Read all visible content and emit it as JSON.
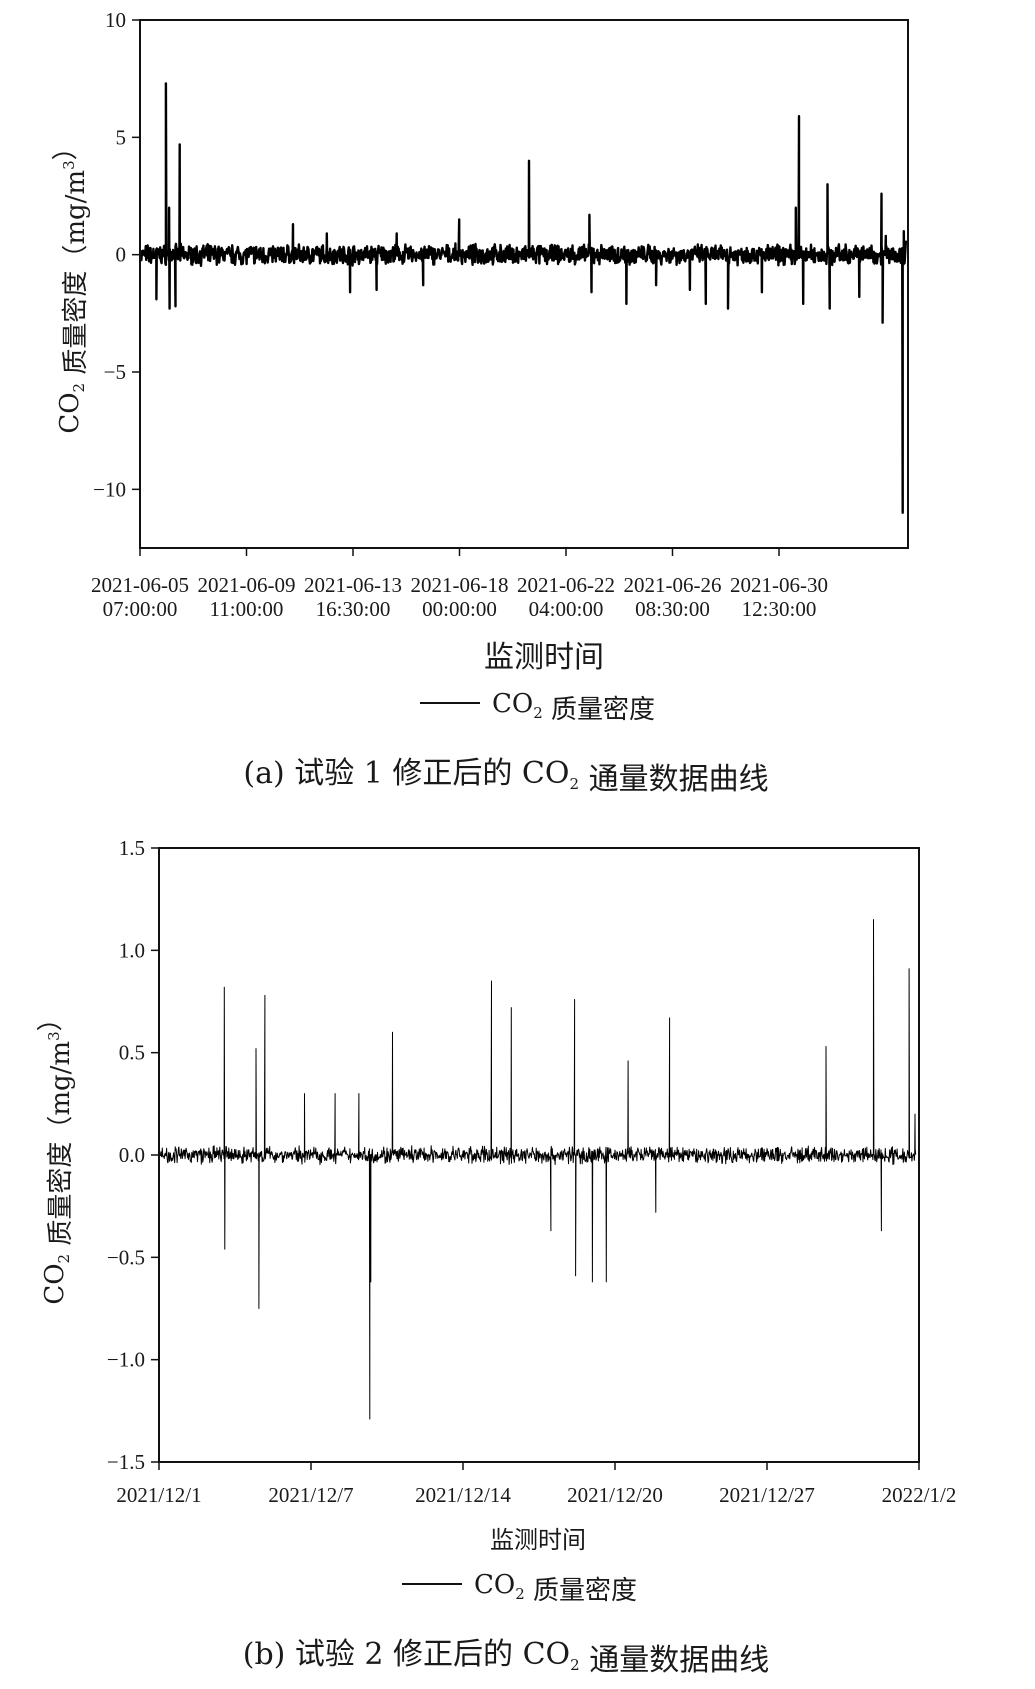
{
  "chart_data": [
    {
      "type": "line",
      "panel": "a",
      "caption": "(a) 试验 1 修正后的 CO2 通量数据曲线",
      "xlabel": "监测时间",
      "ylabel": "CO2 质量密度（mg/m3）",
      "ylim": [
        -12.5,
        10
      ],
      "y_ticks": [
        10,
        5,
        0,
        -5,
        -10
      ],
      "y_tick_labels": [
        "10",
        "5",
        "0",
        "−5",
        "−10"
      ],
      "x_tick_labels": [
        [
          "2021-06-05",
          "07:00:00"
        ],
        [
          "2021-06-09",
          "11:00:00"
        ],
        [
          "2021-06-13",
          "16:30:00"
        ],
        [
          "2021-06-18",
          "00:00:00"
        ],
        [
          "2021-06-22",
          "04:00:00"
        ],
        [
          "2021-06-26",
          "08:30:00"
        ],
        [
          "2021-06-30",
          "12:30:00"
        ]
      ],
      "xlim": [
        "2021-06-01 02:30",
        "2021-07-01 08:00"
      ],
      "grid": false,
      "legend": "bottom",
      "series": [
        {
          "name": "CO2 质量密度",
          "color": "#000000",
          "baseline_noise": 0.5,
          "spikes": [
            {
              "x": "2021-06-02 03:00",
              "y": 7.3
            },
            {
              "x": "2021-06-02 06:00",
              "y": 2.0
            },
            {
              "x": "2021-06-02 06:30",
              "y": -2.3
            },
            {
              "x": "2021-06-02 16:00",
              "y": 4.7
            },
            {
              "x": "2021-06-02 12:00",
              "y": -2.2
            },
            {
              "x": "2021-06-01 18:00",
              "y": -1.9
            },
            {
              "x": "2021-06-07 03:00",
              "y": 1.3
            },
            {
              "x": "2021-06-08 11:00",
              "y": 0.9
            },
            {
              "x": "2021-06-09 09:00",
              "y": -1.6
            },
            {
              "x": "2021-06-10 10:00",
              "y": -1.5
            },
            {
              "x": "2021-06-11 05:00",
              "y": 0.9
            },
            {
              "x": "2021-06-12 06:00",
              "y": -1.3
            },
            {
              "x": "2021-06-13 16:00",
              "y": 1.5
            },
            {
              "x": "2021-06-16 10:00",
              "y": 4.0
            },
            {
              "x": "2021-06-18 19:00",
              "y": 1.7
            },
            {
              "x": "2021-06-18 21:00",
              "y": -1.6
            },
            {
              "x": "2021-06-20 06:00",
              "y": -2.1
            },
            {
              "x": "2021-06-21 10:00",
              "y": -1.3
            },
            {
              "x": "2021-06-22 18:00",
              "y": -1.5
            },
            {
              "x": "2021-06-23 09:00",
              "y": -2.1
            },
            {
              "x": "2021-06-24 06:00",
              "y": -2.3
            },
            {
              "x": "2021-06-25 14:00",
              "y": -1.6
            },
            {
              "x": "2021-06-26 22:00",
              "y": 2.0
            },
            {
              "x": "2021-06-27 01:00",
              "y": 5.9
            },
            {
              "x": "2021-06-27 05:00",
              "y": -2.1
            },
            {
              "x": "2021-06-28 04:00",
              "y": 3.0
            },
            {
              "x": "2021-06-28 06:00",
              "y": -2.3
            },
            {
              "x": "2021-06-29 10:00",
              "y": -1.8
            },
            {
              "x": "2021-06-30 07:00",
              "y": 2.6
            },
            {
              "x": "2021-06-30 08:00",
              "y": -2.9
            },
            {
              "x": "2021-06-30 11:00",
              "y": 0.8
            },
            {
              "x": "2021-07-01 03:00",
              "y": -11.0
            },
            {
              "x": "2021-07-01 04:00",
              "y": 1.0
            },
            {
              "x": "2021-07-01 06:00",
              "y": 0.6
            }
          ]
        }
      ]
    },
    {
      "type": "line",
      "panel": "b",
      "caption": "(b) 试验 2 修正后的 CO2 通量数据曲线",
      "xlabel": "监测时间",
      "ylabel": "CO2 质量密度（mg/m3）",
      "ylim": [
        -1.5,
        1.5
      ],
      "y_ticks": [
        1.5,
        1.0,
        0.5,
        0.0,
        -0.5,
        -1.0,
        -1.5
      ],
      "y_tick_labels": [
        "1.5",
        "1.0",
        "0.5",
        "0.0",
        "−0.5",
        "−1.0",
        "−1.5"
      ],
      "x_tick_labels": [
        "2021/12/1",
        "2021/12/7",
        "2021/12/14",
        "2021/12/20",
        "2021/12/27",
        "2022/1/2"
      ],
      "xlim": [
        "2021-12-01",
        "2022-01-02"
      ],
      "grid": false,
      "legend": "bottom",
      "series": [
        {
          "name": "CO2 质量密度",
          "color": "#000000",
          "baseline_noise": 0.05,
          "spikes": [
            {
              "x": "2021-12-03 18:00",
              "y": 0.82
            },
            {
              "x": "2021-12-03 18:30",
              "y": -0.46
            },
            {
              "x": "2021-12-05 02:00",
              "y": 0.52
            },
            {
              "x": "2021-12-05 05:00",
              "y": -0.75
            },
            {
              "x": "2021-12-05 11:00",
              "y": 0.78
            },
            {
              "x": "2021-12-07 03:00",
              "y": 0.3
            },
            {
              "x": "2021-12-08 10:00",
              "y": 0.3
            },
            {
              "x": "2021-12-09 10:00",
              "y": 0.3
            },
            {
              "x": "2021-12-09 21:00",
              "y": -1.29
            },
            {
              "x": "2021-12-09 22:00",
              "y": -0.62
            },
            {
              "x": "2021-12-10 20:00",
              "y": 0.6
            },
            {
              "x": "2021-12-15 00:00",
              "y": 0.85
            },
            {
              "x": "2021-12-15 20:00",
              "y": 0.72
            },
            {
              "x": "2021-12-17 12:00",
              "y": -0.37
            },
            {
              "x": "2021-12-18 12:00",
              "y": 0.76
            },
            {
              "x": "2021-12-18 13:00",
              "y": -0.59
            },
            {
              "x": "2021-12-19 06:00",
              "y": -0.62
            },
            {
              "x": "2021-12-19 20:00",
              "y": -0.62
            },
            {
              "x": "2021-12-20 18:00",
              "y": 0.46
            },
            {
              "x": "2021-12-21 22:00",
              "y": -0.28
            },
            {
              "x": "2021-12-22 12:00",
              "y": 0.67
            },
            {
              "x": "2021-12-29 02:00",
              "y": 0.53
            },
            {
              "x": "2021-12-31 02:00",
              "y": 1.15
            },
            {
              "x": "2021-12-31 10:00",
              "y": -0.37
            },
            {
              "x": "2022-01-01 14:00",
              "y": 0.91
            },
            {
              "x": "2022-01-01 20:00",
              "y": 0.2
            }
          ]
        }
      ]
    }
  ]
}
